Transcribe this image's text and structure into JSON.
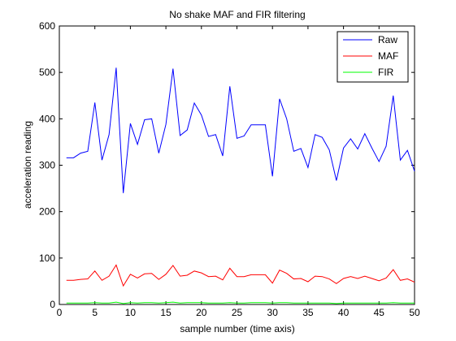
{
  "chart_data": {
    "type": "line",
    "title": "No shake MAF and FIR filtering",
    "xlabel": "sample number (time axis)",
    "ylabel": "acceleration reading",
    "xlim": [
      0,
      50
    ],
    "ylim": [
      0,
      600
    ],
    "xticks": [
      0,
      5,
      10,
      15,
      20,
      25,
      30,
      35,
      40,
      45,
      50
    ],
    "yticks": [
      0,
      100,
      200,
      300,
      400,
      500,
      600
    ],
    "grid": false,
    "legend_position": "top-right",
    "x": [
      1,
      2,
      3,
      4,
      5,
      6,
      7,
      8,
      9,
      10,
      11,
      12,
      13,
      14,
      15,
      16,
      17,
      18,
      19,
      20,
      21,
      22,
      23,
      24,
      25,
      26,
      27,
      28,
      29,
      30,
      31,
      32,
      33,
      34,
      35,
      36,
      37,
      38,
      39,
      40,
      41,
      42,
      43,
      44,
      45,
      46,
      47,
      48,
      49,
      50
    ],
    "series": [
      {
        "name": "Raw",
        "color": "#0000ff",
        "values": [
          316,
          316,
          326,
          330,
          435,
          311,
          366,
          510,
          240,
          390,
          345,
          398,
          400,
          326,
          388,
          508,
          364,
          376,
          434,
          408,
          362,
          366,
          320,
          470,
          358,
          363,
          387,
          387,
          387,
          276,
          443,
          400,
          330,
          336,
          295,
          366,
          360,
          333,
          267,
          337,
          357,
          335,
          368,
          337,
          308,
          341,
          450,
          311,
          332,
          287
        ]
      },
      {
        "name": "MAF",
        "color": "#ff0000",
        "values": [
          52,
          52,
          54,
          55,
          72,
          52,
          61,
          85,
          40,
          65,
          57,
          66,
          67,
          54,
          65,
          84,
          61,
          63,
          72,
          68,
          60,
          61,
          53,
          78,
          60,
          60,
          64,
          64,
          64,
          46,
          74,
          67,
          55,
          56,
          49,
          61,
          60,
          55,
          45,
          56,
          60,
          56,
          61,
          56,
          51,
          57,
          75,
          52,
          55,
          48
        ]
      },
      {
        "name": "FIR",
        "color": "#00ff00",
        "values": [
          3,
          3,
          3,
          3,
          4,
          3,
          3,
          5,
          2,
          4,
          3,
          4,
          4,
          3,
          4,
          5,
          3,
          4,
          4,
          4,
          3,
          3,
          3,
          4,
          3,
          3,
          4,
          4,
          4,
          3,
          4,
          4,
          3,
          3,
          3,
          3,
          3,
          3,
          2,
          3,
          3,
          3,
          3,
          3,
          3,
          3,
          4,
          3,
          3,
          3
        ]
      }
    ]
  }
}
